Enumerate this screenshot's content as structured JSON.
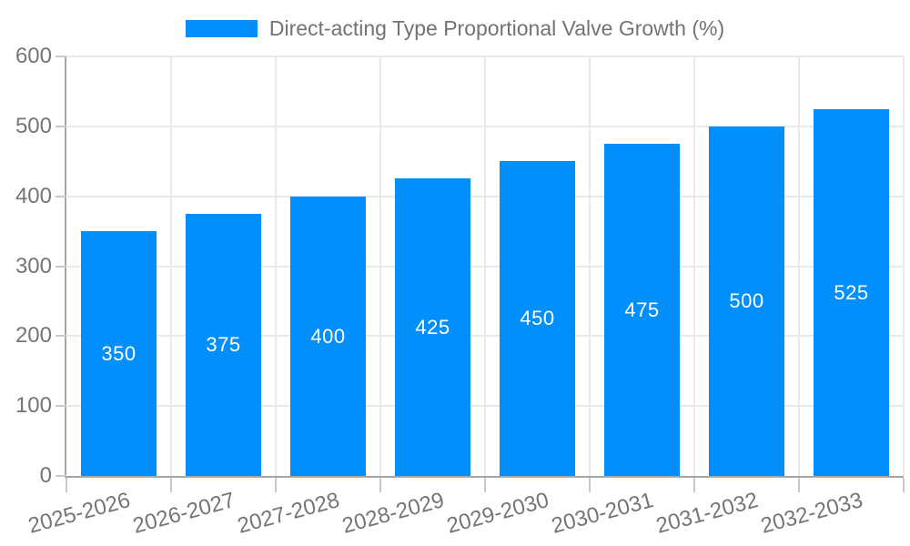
{
  "legend": {
    "label": "Direct-acting Type Proportional Valve Growth (%)"
  },
  "colors": {
    "bar": "#008FFB",
    "bar_label": "#ffffff",
    "axis_label": "#757575",
    "legend_text": "#737373",
    "axis_line": "#a6a6a6",
    "tick": "#c9c9c9",
    "grid": "#e9e9e9",
    "background": "#ffffff"
  },
  "chart_data": {
    "type": "bar",
    "title": "",
    "categories": [
      "2025-2026",
      "2026-2027",
      "2027-2028",
      "2028-2029",
      "2029-2030",
      "2030-2031",
      "2031-2032",
      "2032-2033"
    ],
    "series": [
      {
        "name": "Direct-acting Type Proportional Valve Growth (%)",
        "values": [
          350,
          375,
          400,
          425,
          450,
          475,
          500,
          525
        ]
      }
    ],
    "xlabel": "",
    "ylabel": "",
    "ylim": [
      0,
      600
    ],
    "y_ticks": [
      0,
      100,
      200,
      300,
      400,
      500,
      600
    ],
    "grid": true,
    "legend_position": "top-center",
    "bar_value_labels": "inside-center",
    "x_tick_label_rotation_deg": -15
  }
}
